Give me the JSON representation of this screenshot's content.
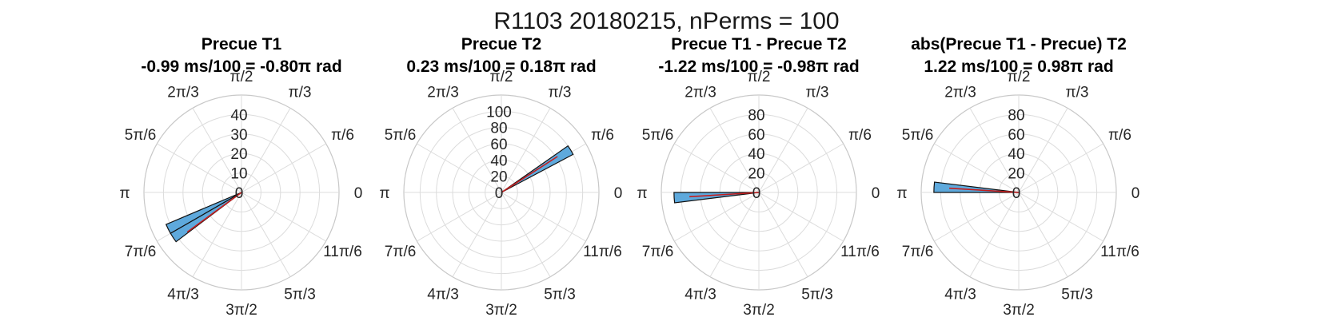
{
  "figure_title": "R1103 20180215, nPerms = 100",
  "theta_labels": [
    "0",
    "π/6",
    "π/3",
    "π/2",
    "2π/3",
    "5π/6",
    "π",
    "7π/6",
    "4π/3",
    "3π/2",
    "5π/3",
    "11π/6"
  ],
  "colors": {
    "bar_fill": "#5ea9dc",
    "bar_edge": "#111111",
    "mean_line": "#c41e1e",
    "grid": "#dcdcdc"
  },
  "chart_data": [
    {
      "type": "polar-histogram",
      "title_line1": "Precue T1",
      "title_line2": "-0.99 ms/100 = -0.80π rad",
      "r_max": 50,
      "r_ticks": [
        0,
        10,
        20,
        30,
        40
      ],
      "bars": [
        {
          "theta_start_deg": 203,
          "theta_end_deg": 210,
          "count": 42
        },
        {
          "theta_start_deg": 210,
          "theta_end_deg": 217,
          "count": 42
        }
      ],
      "mean_angle_rad": -2.51
    },
    {
      "type": "polar-histogram",
      "title_line1": "Precue T2",
      "title_line2": "0.23 ms/100 = 0.18π rad",
      "r_max": 120,
      "r_ticks": [
        0,
        20,
        40,
        60,
        80,
        100
      ],
      "bars": [
        {
          "theta_start_deg": 28,
          "theta_end_deg": 35,
          "count": 100
        }
      ],
      "mean_angle_rad": 0.57
    },
    {
      "type": "polar-histogram",
      "title_line1": "Precue T1 - Precue T2",
      "title_line2": "-1.22 ms/100 = -0.98π rad",
      "r_max": 100,
      "r_ticks": [
        0,
        20,
        40,
        60,
        80
      ],
      "bars": [
        {
          "theta_start_deg": 180,
          "theta_end_deg": 187,
          "count": 87
        }
      ],
      "mean_angle_rad": -3.08
    },
    {
      "type": "polar-histogram",
      "title_line1": "abs(Precue T1 - Precue) T2",
      "title_line2": "1.22 ms/100 = 0.98π rad",
      "r_max": 100,
      "r_ticks": [
        0,
        20,
        40,
        60,
        80
      ],
      "bars": [
        {
          "theta_start_deg": 173,
          "theta_end_deg": 180,
          "count": 87
        }
      ],
      "mean_angle_rad": 3.08
    }
  ]
}
